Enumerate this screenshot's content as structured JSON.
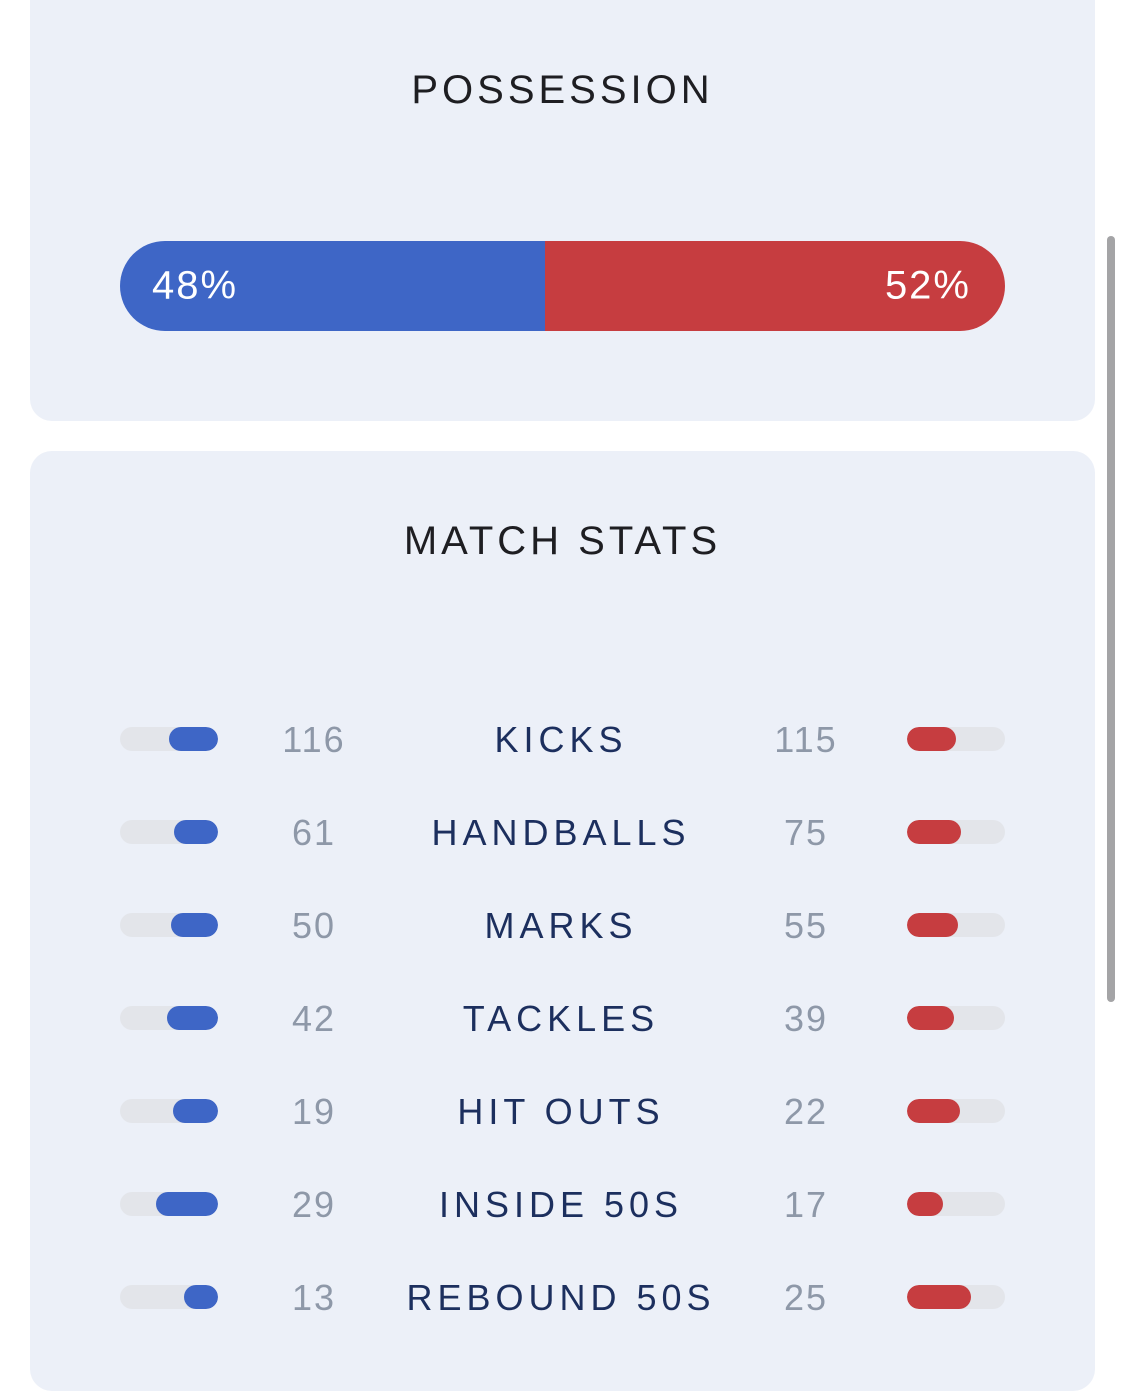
{
  "possession": {
    "title": "POSSESSION",
    "home_pct": 48,
    "away_pct": 52,
    "home_label": "48%",
    "away_label": "52%"
  },
  "match_stats": {
    "title": "MATCH STATS",
    "rows": [
      {
        "label": "KICKS",
        "home": "116",
        "away": "115"
      },
      {
        "label": "HANDBALLS",
        "home": "61",
        "away": "75"
      },
      {
        "label": "MARKS",
        "home": "50",
        "away": "55"
      },
      {
        "label": "TACKLES",
        "home": "42",
        "away": "39"
      },
      {
        "label": "HIT OUTS",
        "home": "19",
        "away": "22"
      },
      {
        "label": "INSIDE 50S",
        "home": "29",
        "away": "17"
      },
      {
        "label": "REBOUND 50S",
        "home": "13",
        "away": "25"
      }
    ]
  },
  "colors": {
    "home": "#3e66c6",
    "away": "#c63d40",
    "card_bg": "#ecf0f8",
    "track": "#e3e5ea"
  }
}
